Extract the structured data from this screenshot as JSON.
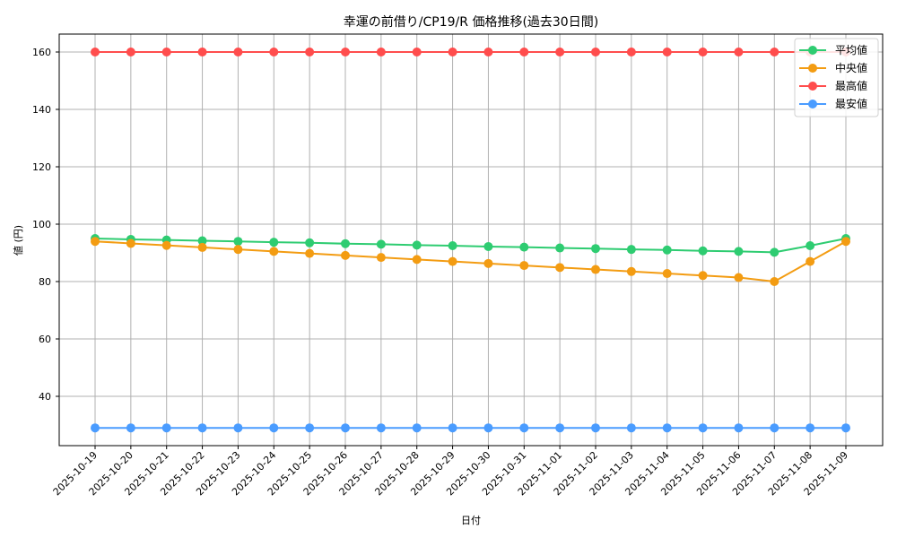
{
  "chart_data": {
    "type": "line",
    "title": "幸運の前借り/CP19/R 価格推移(過去30日間)",
    "xlabel": "日付",
    "ylabel": "値 (円)",
    "ylim": [
      22,
      166
    ],
    "yticks": [
      40,
      60,
      80,
      100,
      120,
      140,
      160
    ],
    "grid": true,
    "legend_position": "upper right",
    "categories": [
      "2025-10-19",
      "2025-10-20",
      "2025-10-21",
      "2025-10-22",
      "2025-10-23",
      "2025-10-24",
      "2025-10-25",
      "2025-10-26",
      "2025-10-27",
      "2025-10-28",
      "2025-10-29",
      "2025-10-30",
      "2025-10-31",
      "2025-11-01",
      "2025-11-02",
      "2025-11-03",
      "2025-11-04",
      "2025-11-05",
      "2025-11-06",
      "2025-11-07",
      "2025-11-08",
      "2025-11-09"
    ],
    "series": [
      {
        "name": "平均値",
        "color": "#2ecc71",
        "values": [
          95,
          94.7,
          94.5,
          94.2,
          94,
          93.7,
          93.5,
          93.2,
          93,
          92.7,
          92.5,
          92.2,
          92,
          91.7,
          91.5,
          91.2,
          91,
          90.7,
          90.5,
          90.2,
          92.5,
          95
        ]
      },
      {
        "name": "中央値",
        "color": "#f39c12",
        "values": [
          94,
          93.3,
          92.6,
          91.9,
          91.2,
          90.5,
          89.8,
          89.1,
          88.4,
          87.7,
          87,
          86.3,
          85.6,
          84.9,
          84.2,
          83.5,
          82.8,
          82.1,
          81.4,
          80,
          87,
          94
        ]
      },
      {
        "name": "最高値",
        "color": "#ff4d4d",
        "values": [
          160,
          160,
          160,
          160,
          160,
          160,
          160,
          160,
          160,
          160,
          160,
          160,
          160,
          160,
          160,
          160,
          160,
          160,
          160,
          160,
          160,
          160
        ]
      },
      {
        "name": "最安値",
        "color": "#4a9cff",
        "values": [
          29,
          29,
          29,
          29,
          29,
          29,
          29,
          29,
          29,
          29,
          29,
          29,
          29,
          29,
          29,
          29,
          29,
          29,
          29,
          29,
          29,
          29
        ]
      }
    ]
  }
}
